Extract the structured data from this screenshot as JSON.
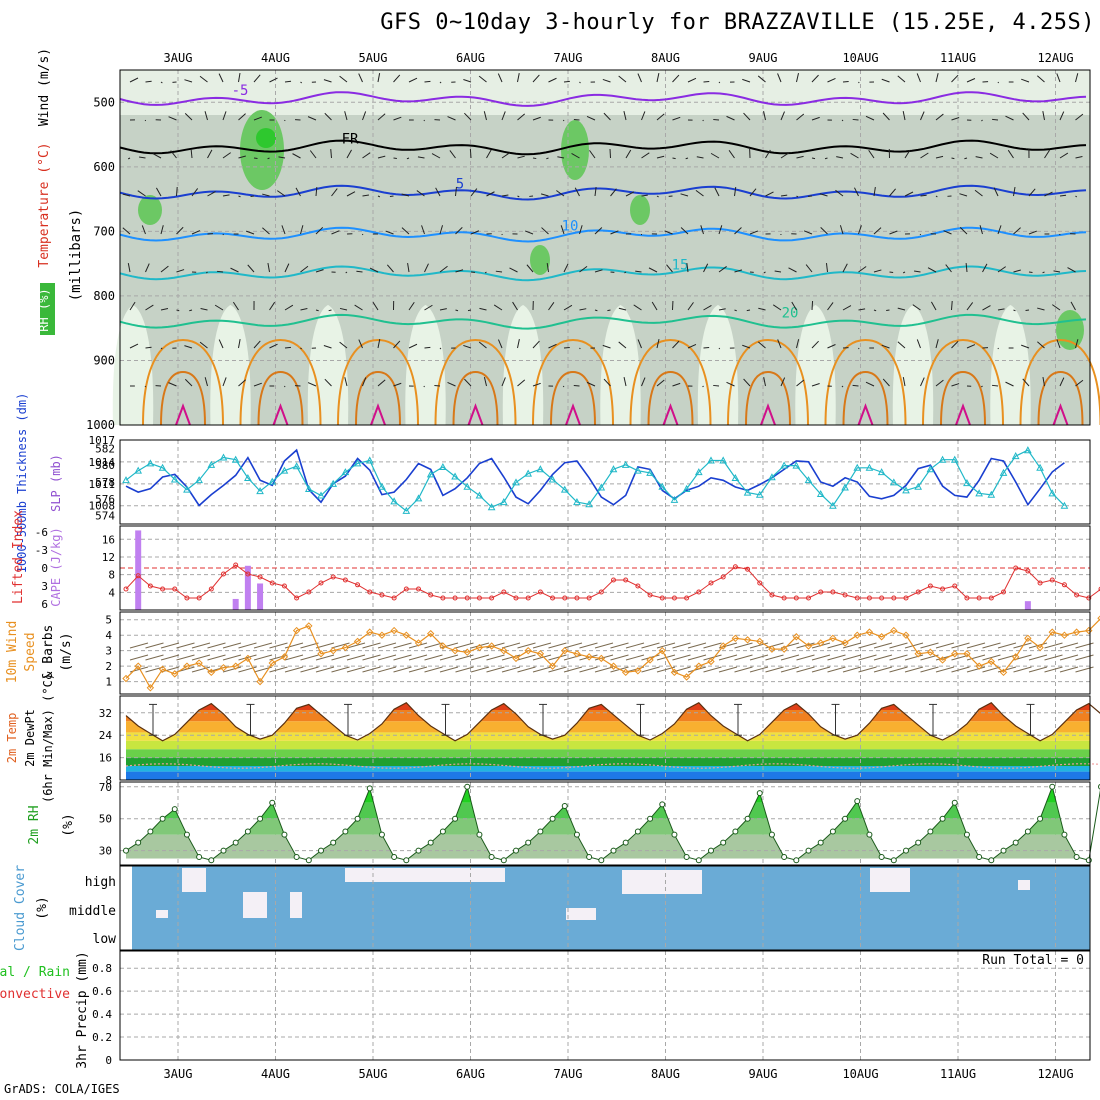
{
  "title": "GFS 0~10day 3-hourly for BRAZZAVILLE (15.25E, 4.25S)",
  "credit": "GrADS: COLA/IGES",
  "colors": {
    "blue_line": "#1a3fd0",
    "cyan_line": "#20b8c8",
    "red": "#e03030",
    "purple": "#c080f0",
    "orange": "#e89020",
    "green": "#22c022",
    "cloud_blue": "#6aabd6",
    "grid": "#a8a8a8"
  },
  "chart_data": [
    {
      "panel": "upper_air",
      "type": "heatmap",
      "xlabels": [
        "3AUG",
        "4AUG",
        "5AUG",
        "6AUG",
        "7AUG",
        "8AUG",
        "9AUG",
        "10AUG",
        "11AUG",
        "12AUG"
      ],
      "ylabels": [
        "500",
        "600",
        "700",
        "800",
        "900",
        "1000"
      ],
      "ylabel_wind": "Wind (m/s)",
      "ylabel_temp": "Temperature (°C)",
      "ylabel_rh": "RH (%)",
      "ylabel_mb": "(millibars)",
      "ylim": [
        450,
        1000
      ],
      "isotherms": [
        {
          "label": "-5",
          "color": "#8a2be2",
          "level_mb": 495
        },
        {
          "label": "FR",
          "color": "#000000",
          "level_mb": 570
        },
        {
          "label": "5",
          "color": "#1a3fd0",
          "level_mb": 640
        },
        {
          "label": "10",
          "color": "#1e90ff",
          "level_mb": 705
        },
        {
          "label": "15",
          "color": "#20b8c8",
          "level_mb": 765
        },
        {
          "label": "20",
          "color": "#20c090",
          "level_mb": 840
        }
      ]
    },
    {
      "panel": "thickness_slp",
      "type": "line",
      "ylabel_left": "1000-500mb Thickness (dm)",
      "ylabel_right": "SLP (mb)",
      "left_ticks": [
        "582",
        "580",
        "578",
        "576",
        "574"
      ],
      "right_ticks": [
        "1017",
        "1014",
        "1011",
        "1008"
      ],
      "series": [
        {
          "name": "thickness",
          "values": [
            577.5,
            576.8,
            577.2,
            578.6,
            578.9,
            577.4,
            575.2,
            576.5,
            577.6,
            578.8,
            580.9,
            578.2,
            577.6,
            580.5,
            581.8,
            577.1,
            575.6,
            577.8,
            578.7,
            580.8,
            579.4,
            576.5,
            576.8,
            578.3,
            580.2,
            579.5,
            576.4,
            577.2,
            578.5,
            580.2,
            580.8,
            578.6,
            576.2,
            575.4,
            577.0,
            578.9,
            580.3,
            580.5,
            578.5,
            576.2,
            575.3,
            576.4,
            579.8,
            579.5,
            577.0,
            576.0,
            577.0,
            577.5,
            578.5,
            578.2,
            577.4,
            577.0,
            577.7,
            578.5,
            579.5,
            580.5,
            580.4,
            578.0,
            577.5,
            578.5,
            578.0,
            576.3,
            576.0,
            576.4,
            577.6,
            579.6,
            580.0,
            577.5,
            576.4,
            576.2,
            578.2,
            580.8,
            580.5,
            578.0,
            575.3,
            577.2,
            579.2,
            580.3
          ]
        },
        {
          "name": "slp",
          "values": [
            1011.5,
            1012.8,
            1013.8,
            1013.2,
            1011.6,
            1010.2,
            1011.5,
            1013.6,
            1014.6,
            1014.3,
            1011.8,
            1010.0,
            1011.3,
            1012.8,
            1013.4,
            1010.3,
            1009.4,
            1011.0,
            1012.6,
            1013.8,
            1014.2,
            1010.6,
            1008.6,
            1007.3,
            1009.0,
            1012.3,
            1013.3,
            1012.0,
            1010.6,
            1009.4,
            1007.8,
            1008.5,
            1011.2,
            1012.4,
            1013.0,
            1011.6,
            1010.2,
            1008.5,
            1008.2,
            1010.5,
            1013.0,
            1013.6,
            1012.8,
            1012.5,
            1010.6,
            1008.8,
            1010.3,
            1012.6,
            1014.2,
            1014.2,
            1011.8,
            1009.8,
            1009.5,
            1011.9,
            1013.5,
            1013.5,
            1011.5,
            1009.6,
            1008.0,
            1010.5,
            1013.2,
            1013.2,
            1012.6,
            1011.2,
            1010.1,
            1010.6,
            1013.0,
            1014.3,
            1014.3,
            1011.1,
            1009.7,
            1009.5,
            1012.5,
            1014.8,
            1015.6,
            1013.2,
            1009.7,
            1008.0
          ]
        }
      ]
    },
    {
      "panel": "cape_li",
      "type": "bar",
      "ylabel_left": "Lifted Index",
      "ylabel_right": "CAPE (J/kg)",
      "left_ticks": [
        "-6",
        "-3",
        "0",
        "3",
        "6"
      ],
      "right_ticks": [
        "16",
        "12",
        "8",
        "4"
      ],
      "cape_bars": [
        {
          "index": 1,
          "value": 18
        },
        {
          "index": 9,
          "value": 2.5
        },
        {
          "index": 10,
          "value": 10
        },
        {
          "index": 11,
          "value": 6
        },
        {
          "index": 74,
          "value": 2
        }
      ],
      "lifted_index": [
        3.5,
        1.3,
        3.0,
        3.5,
        3.5,
        5.0,
        5.0,
        3.5,
        1.0,
        -0.5,
        1.0,
        1.5,
        2.5,
        3.0,
        5.0,
        4.0,
        2.5,
        1.5,
        2.0,
        2.8,
        4.0,
        4.5,
        5.0,
        3.5,
        3.5,
        4.5,
        5.0,
        5.0,
        5.0,
        5.0,
        5.0,
        4.0,
        5.0,
        5.0,
        4.0,
        5.0,
        5.0,
        5.0,
        5.0,
        4.0,
        2.0,
        2.0,
        3.0,
        4.5,
        5.0,
        5.0,
        5.0,
        4.0,
        2.5,
        1.5,
        -0.2,
        0.2,
        2.5,
        4.5,
        5.0,
        5.0,
        5.0,
        4.0,
        4.0,
        4.5,
        5.0,
        5.0,
        5.0,
        5.0,
        5.0,
        4.0,
        3.0,
        3.5,
        3.0,
        5.0,
        5.0,
        5.0,
        4.0,
        0.0,
        0.5,
        2.5,
        2.0,
        2.8,
        4.5,
        5.0,
        3.5
      ]
    },
    {
      "panel": "wind10m",
      "type": "line",
      "ylabel": "10m Wind Speed & Barbs (m/s)",
      "ylabel_words": [
        "10m Wind",
        "Speed",
        "& Barbs",
        "(m/s)"
      ],
      "ticks": [
        "5",
        "4",
        "3",
        "2",
        "1"
      ],
      "values": [
        1.2,
        2.0,
        0.6,
        1.8,
        1.5,
        2.0,
        2.2,
        1.6,
        1.9,
        2.0,
        2.5,
        1.0,
        2.2,
        2.6,
        4.3,
        4.6,
        2.8,
        3.0,
        3.2,
        3.6,
        4.2,
        4.0,
        4.3,
        4.0,
        3.5,
        4.1,
        3.3,
        3.0,
        2.9,
        3.2,
        3.3,
        3.0,
        2.5,
        3.0,
        2.8,
        2.0,
        3.0,
        2.8,
        2.6,
        2.5,
        2.0,
        1.6,
        1.7,
        2.4,
        3.0,
        1.6,
        1.3,
        2.0,
        2.3,
        3.3,
        3.8,
        3.7,
        3.6,
        3.1,
        3.1,
        3.9,
        3.3,
        3.5,
        3.8,
        3.5,
        4.0,
        4.2,
        3.9,
        4.3,
        4.0,
        2.8,
        2.9,
        2.4,
        2.8,
        2.8,
        2.0,
        2.3,
        1.6,
        2.6,
        3.8,
        3.2,
        4.2,
        4.0,
        4.2,
        4.3,
        5.1
      ]
    },
    {
      "panel": "temp2m",
      "type": "area",
      "ylabel_words": [
        "2m Temp",
        "2m DewPt",
        "(6hr Min/Max) (°C)"
      ],
      "ticks": [
        "32",
        "24",
        "16",
        "8"
      ],
      "temp_cycle": [
        22,
        24,
        28,
        33,
        35,
        31,
        27,
        24
      ],
      "dewpoint": 13
    },
    {
      "panel": "rh2m",
      "type": "area",
      "ylabel": "2m RH (%)",
      "ylabel_words": [
        "2m RH",
        "(%)"
      ],
      "ticks": [
        "70",
        "50",
        "30"
      ],
      "rh_peaks": [
        56,
        60,
        69,
        70,
        58,
        59,
        66,
        61,
        60,
        70
      ],
      "rh_min": 24
    },
    {
      "panel": "cloud",
      "type": "bar",
      "ylabel_words": [
        "Cloud Cover",
        "(%)"
      ],
      "levels": [
        "high",
        "middle",
        "low"
      ]
    },
    {
      "panel": "precip",
      "type": "bar",
      "ylabel_words": [
        "Total / Rain",
        "Convective",
        "3hr Precip (mm)"
      ],
      "ticks": [
        "0.8",
        "0.6",
        "0.4",
        "0.2",
        "0"
      ],
      "run_total": "Run Total = 0"
    }
  ]
}
